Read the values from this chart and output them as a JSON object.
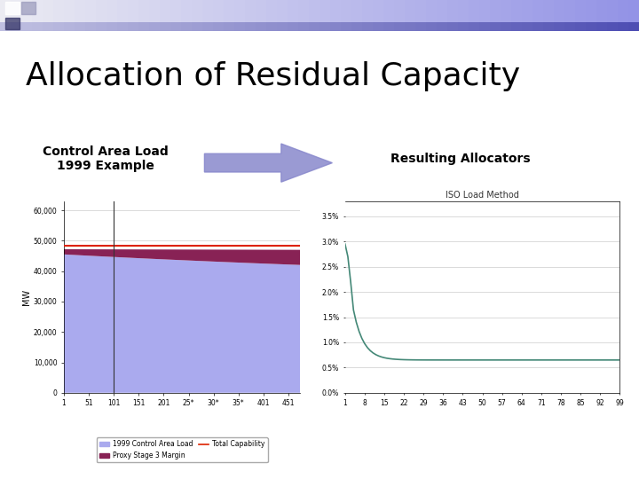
{
  "title": "Allocation of Residual Capacity",
  "left_label": "Control Area Load\n1999 Example",
  "right_label": "Resulting Allocators",
  "arrow_color": "#8888cc",
  "bg_color": "#ffffff",
  "title_fontsize": 26,
  "label_fontsize": 10,
  "left_chart": {
    "ylabel": "MW",
    "xticks": [
      1,
      51,
      101,
      151,
      201,
      251,
      301,
      351,
      401,
      451
    ],
    "xtick_labels": [
      "1",
      "51",
      "101",
      "151",
      "201",
      "25*",
      "30*",
      "35*",
      "401",
      "451"
    ],
    "yticks": [
      0,
      10000,
      20000,
      30000,
      40000,
      50000,
      60000
    ],
    "ylim": [
      0,
      63000
    ],
    "xlim": [
      1,
      475
    ],
    "vline_x": 101,
    "total_capability": 48500,
    "area_load_color": "#aaaaee",
    "proxy_margin_color": "#882255",
    "total_cap_color": "#dd2200",
    "legend_labels": [
      "1999 Control Area Load",
      "Proxy Stage 3 Margin",
      "Total Capability"
    ]
  },
  "right_chart": {
    "title": "ISO Load Method",
    "xticks": [
      1,
      8,
      15,
      22,
      29,
      36,
      43,
      50,
      57,
      64,
      71,
      78,
      85,
      92,
      99
    ],
    "ytick_labels": [
      "0.0%",
      "0.5%",
      "1.0%",
      "1.5%",
      "2.0%",
      "2.5%",
      "3.0%",
      "3.5%"
    ],
    "ytick_values": [
      0.0,
      0.005,
      0.01,
      0.015,
      0.02,
      0.025,
      0.03,
      0.035
    ],
    "ylim": [
      0.0,
      0.038
    ],
    "xlim": [
      1,
      99
    ],
    "line_color": "#448877"
  }
}
